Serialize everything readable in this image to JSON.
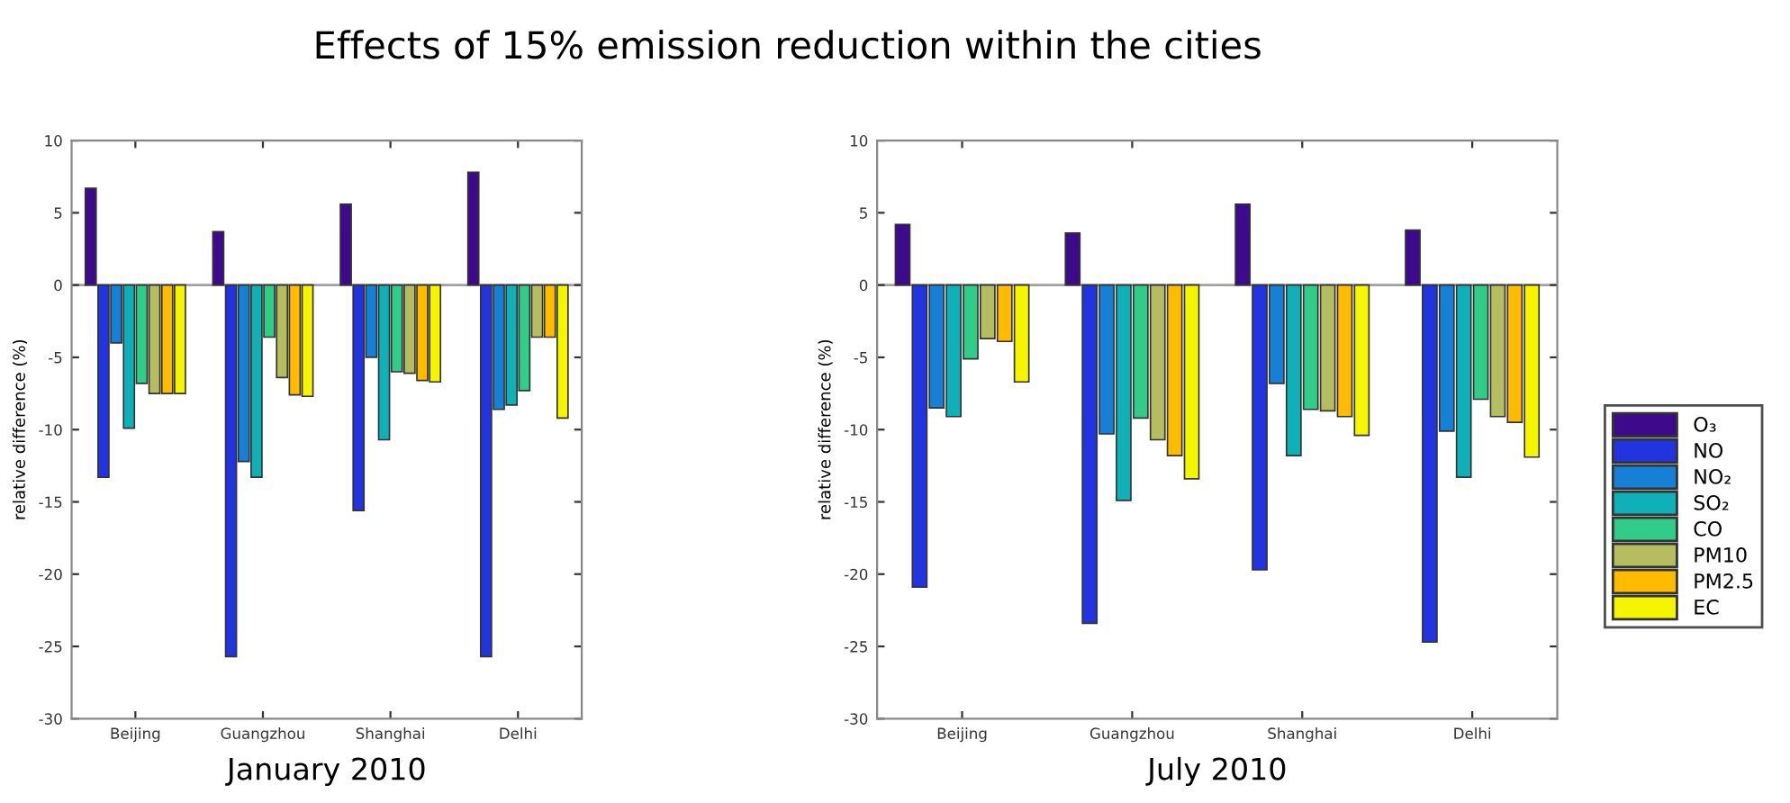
{
  "chart_data": [
    {
      "type": "bar",
      "title": "Effects of 15% emission reduction within the cities",
      "xlabel": "January 2010",
      "ylabel": "relative difference (%)",
      "categories": [
        "Beijing",
        "Guangzhou",
        "Shanghai",
        "Delhi"
      ],
      "ylim": [
        -30,
        10
      ],
      "yticks": [
        -30,
        -25,
        -20,
        -15,
        -10,
        -5,
        0,
        5,
        10
      ],
      "grid": false,
      "ref_lines": [
        {
          "axis": "y",
          "value": 0,
          "color": "#a0a0a0"
        }
      ],
      "series": [
        {
          "color": "#3d0a8c",
          "values": [
            6.7,
            3.7,
            5.6,
            7.8
          ]
        },
        {
          "color": "#2233e0",
          "values": [
            -13.3,
            -25.7,
            -15.6,
            -25.7
          ]
        },
        {
          "color": "#1580d6",
          "values": [
            -4.0,
            -12.2,
            -5.0,
            -8.6
          ]
        },
        {
          "color": "#10b0b8",
          "values": [
            -9.9,
            -13.3,
            -10.7,
            -8.3
          ]
        },
        {
          "color": "#30cc88",
          "values": [
            -6.8,
            -3.6,
            -6.0,
            -7.3
          ]
        },
        {
          "color": "#b5bd60",
          "values": [
            -7.5,
            -6.4,
            -6.1,
            -3.6
          ]
        },
        {
          "color": "#ffbb00",
          "values": [
            -7.5,
            -7.6,
            -6.6,
            -3.6
          ]
        },
        {
          "color": "#f5f500",
          "values": [
            -7.5,
            -7.7,
            -6.7,
            -9.2
          ]
        }
      ]
    },
    {
      "type": "bar",
      "xlabel": "July 2010",
      "ylabel": "relative difference (%)",
      "categories": [
        "Beijing",
        "Guangzhou",
        "Shanghai",
        "Delhi"
      ],
      "ylim": [
        -30,
        10
      ],
      "yticks": [
        -30,
        -25,
        -20,
        -15,
        -10,
        -5,
        0,
        5,
        10
      ],
      "grid": false,
      "legend": "right",
      "ref_lines": [
        {
          "axis": "y",
          "value": 0,
          "color": "#a0a0a0"
        }
      ],
      "series": [
        {
          "name": "O₃",
          "color": "#3d0a8c",
          "values": [
            4.2,
            3.6,
            5.6,
            3.8
          ]
        },
        {
          "name": "NO",
          "color": "#2233e0",
          "values": [
            -20.9,
            -23.4,
            -19.7,
            -24.7
          ]
        },
        {
          "name": "NO₂",
          "color": "#1580d6",
          "values": [
            -8.5,
            -10.3,
            -6.8,
            -10.1
          ]
        },
        {
          "name": "SO₂",
          "color": "#10b0b8",
          "values": [
            -9.1,
            -14.9,
            -11.8,
            -13.3
          ]
        },
        {
          "name": "CO",
          "color": "#30cc88",
          "values": [
            -5.1,
            -9.2,
            -8.6,
            -7.9
          ]
        },
        {
          "name": "PM10",
          "color": "#b5bd60",
          "values": [
            -3.7,
            -10.7,
            -8.7,
            -9.1
          ]
        },
        {
          "name": "PM2.5",
          "color": "#ffbb00",
          "values": [
            -3.9,
            -11.8,
            -9.1,
            -9.5
          ]
        },
        {
          "name": "EC",
          "color": "#f5f500",
          "values": [
            -6.7,
            -13.4,
            -10.4,
            -11.9
          ]
        }
      ]
    }
  ]
}
